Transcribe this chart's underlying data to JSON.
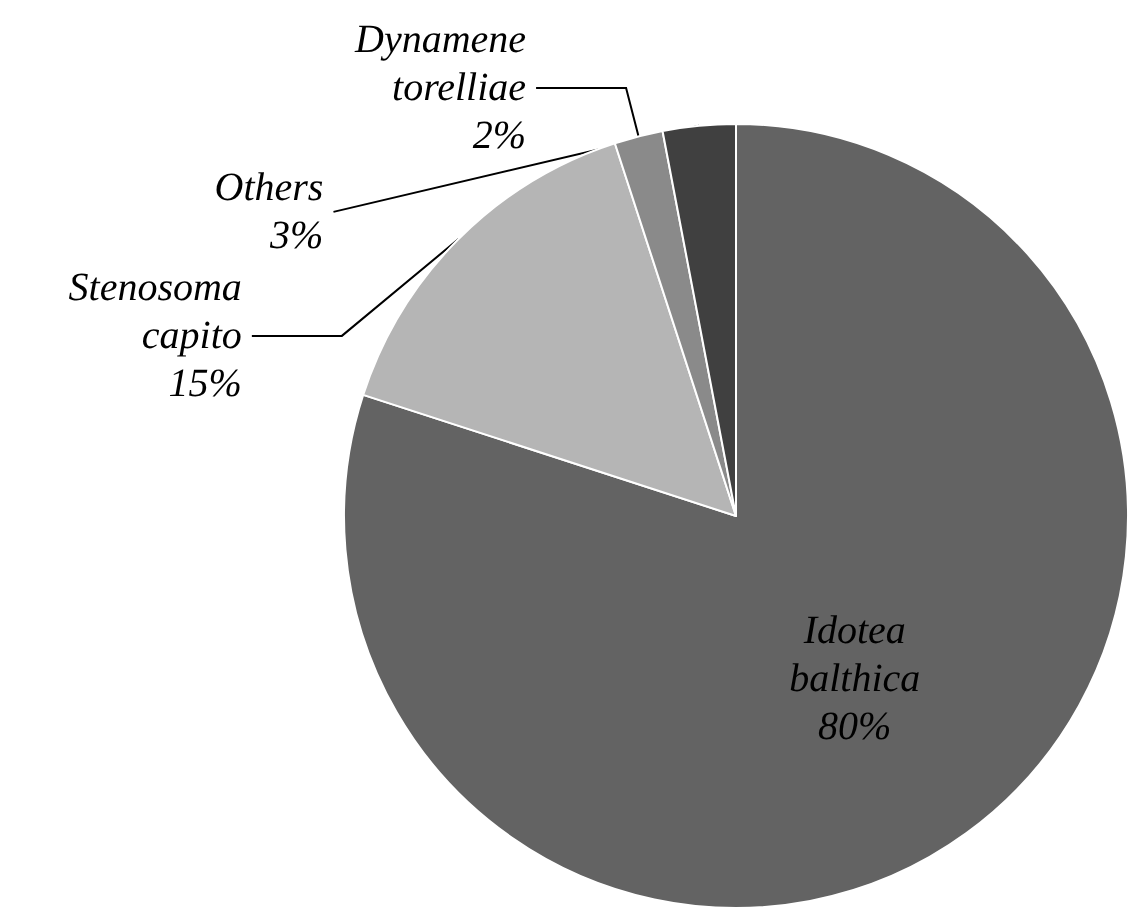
{
  "chart_data": {
    "type": "pie",
    "categories": [
      "Idotea balthica",
      "Stenosoma capito",
      "Dynamene torelliae",
      "Others"
    ],
    "values": [
      80,
      15,
      2,
      3
    ],
    "value_labels": [
      "80%",
      "15%",
      "2%",
      "3%"
    ],
    "colors": [
      "#636363",
      "#b5b5b5",
      "#8a8a8a",
      "#404040"
    ],
    "legend": false
  }
}
